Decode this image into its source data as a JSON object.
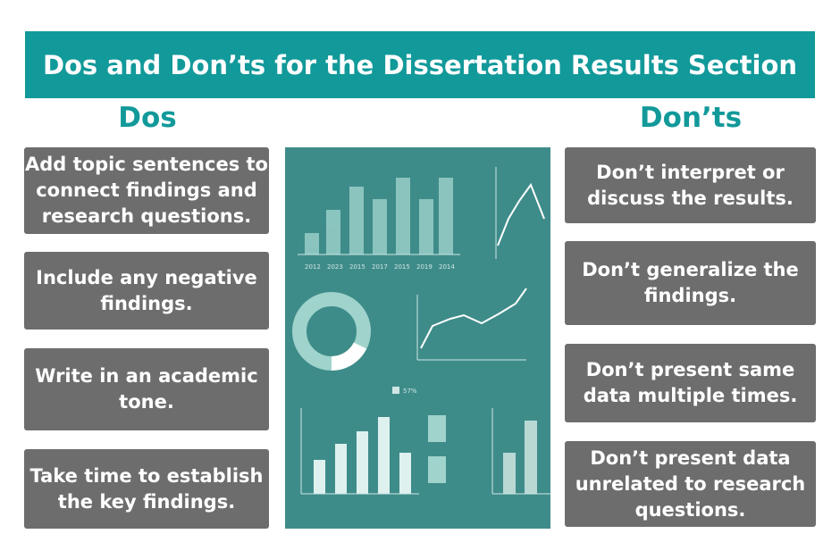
{
  "header": {
    "title": "Dos and Don’ts for the Dissertation Results Section"
  },
  "dos": {
    "heading": "Dos",
    "items": [
      [
        "Add topic sentences to",
        "connect findings and",
        "research questions."
      ],
      [
        "Include any negative",
        "findings."
      ],
      [
        "Write in an academic",
        "tone."
      ],
      [
        "Take time to establish",
        "the key findings."
      ]
    ]
  },
  "donts": {
    "heading": "Don’ts",
    "items": [
      [
        "Don’t interpret or",
        "discuss the results."
      ],
      [
        "Don’t generalize the",
        "findings."
      ],
      [
        "Don’t present same",
        "data multiple times."
      ],
      [
        "Don’t present data",
        "unrelated to research",
        "questions."
      ]
    ]
  },
  "illustration": {
    "years": [
      "2012",
      "2023",
      "2015",
      "2017",
      "2015",
      "2019",
      "2014"
    ],
    "legend": "57%"
  }
}
